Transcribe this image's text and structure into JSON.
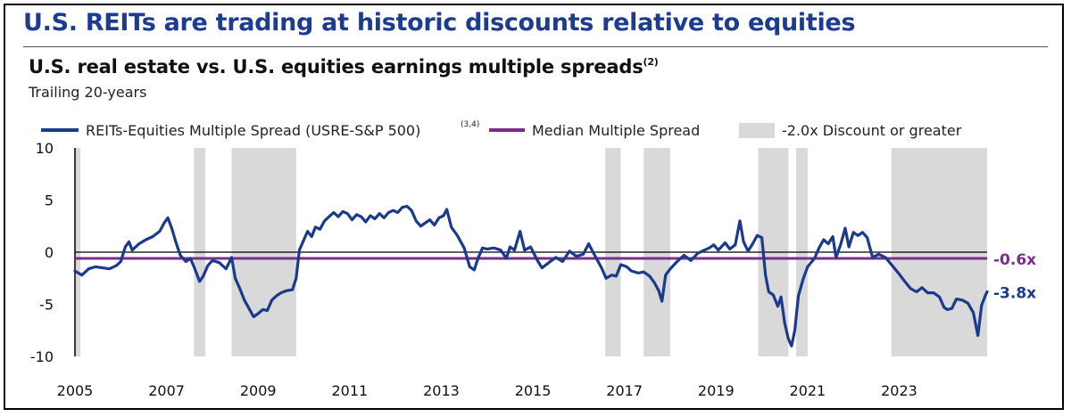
{
  "header": {
    "title": "U.S. REITs are trading at historic discounts relative to equities"
  },
  "chart_data": {
    "type": "line",
    "title": "U.S. real estate vs. U.S. equities earnings multiple spreads",
    "title_sup": "(2)",
    "subtitle": "Trailing 20-years",
    "xlabel": "",
    "ylabel": "",
    "xlim": [
      2005.0,
      2024.92
    ],
    "ylim": [
      -10,
      10
    ],
    "yticks": [
      "10",
      "5",
      "0",
      "-5",
      "-10"
    ],
    "xticks": [
      "2005",
      "2007",
      "2009",
      "2011",
      "2013",
      "2015",
      "2017",
      "2019",
      "2021",
      "2023"
    ],
    "legend_position": "top",
    "grid": false,
    "legend": {
      "series_label": "REITs-Equities Multiple Spread (USRE-S&P 500)",
      "series_sup": "(3,4)",
      "median_label": "Median Multiple Spread",
      "shade_label": "-2.0x Discount or greater"
    },
    "colors": {
      "series": "#1a3a8c",
      "median": "#7b2d8e",
      "shade": "#d9d9d9",
      "zero_line": "#000000"
    },
    "median_value": -0.6,
    "median_label": "-0.6x",
    "end_label": "-3.8x",
    "shaded_periods": [
      [
        2005.0,
        2005.12
      ],
      [
        2007.6,
        2007.85
      ],
      [
        2008.42,
        2009.83
      ],
      [
        2016.58,
        2016.92
      ],
      [
        2017.42,
        2018.0
      ],
      [
        2019.92,
        2020.58
      ],
      [
        2020.75,
        2021.0
      ],
      [
        2022.83,
        2024.92
      ]
    ],
    "series": [
      {
        "name": "REITs-Equities Multiple Spread (USRE-S&P 500)",
        "points": [
          [
            2005.0,
            -1.8
          ],
          [
            2005.15,
            -2.2
          ],
          [
            2005.3,
            -1.6
          ],
          [
            2005.45,
            -1.4
          ],
          [
            2005.6,
            -1.5
          ],
          [
            2005.75,
            -1.6
          ],
          [
            2005.9,
            -1.3
          ],
          [
            2006.0,
            -0.9
          ],
          [
            2006.1,
            0.5
          ],
          [
            2006.18,
            1.0
          ],
          [
            2006.25,
            0.2
          ],
          [
            2006.4,
            0.8
          ],
          [
            2006.55,
            1.2
          ],
          [
            2006.7,
            1.5
          ],
          [
            2006.85,
            2.0
          ],
          [
            2006.95,
            2.8
          ],
          [
            2007.03,
            3.3
          ],
          [
            2007.12,
            2.2
          ],
          [
            2007.2,
            1.0
          ],
          [
            2007.3,
            -0.3
          ],
          [
            2007.42,
            -0.9
          ],
          [
            2007.52,
            -0.6
          ],
          [
            2007.6,
            -1.4
          ],
          [
            2007.72,
            -2.8
          ],
          [
            2007.8,
            -2.3
          ],
          [
            2007.9,
            -1.3
          ],
          [
            2008.0,
            -0.8
          ],
          [
            2008.15,
            -1.0
          ],
          [
            2008.3,
            -1.6
          ],
          [
            2008.42,
            -0.5
          ],
          [
            2008.5,
            -2.5
          ],
          [
            2008.6,
            -3.5
          ],
          [
            2008.7,
            -4.6
          ],
          [
            2008.8,
            -5.4
          ],
          [
            2008.9,
            -6.2
          ],
          [
            2009.0,
            -5.9
          ],
          [
            2009.1,
            -5.5
          ],
          [
            2009.2,
            -5.6
          ],
          [
            2009.3,
            -4.6
          ],
          [
            2009.4,
            -4.2
          ],
          [
            2009.5,
            -3.9
          ],
          [
            2009.62,
            -3.7
          ],
          [
            2009.75,
            -3.6
          ],
          [
            2009.83,
            -2.5
          ],
          [
            2009.9,
            0.2
          ],
          [
            2010.0,
            1.2
          ],
          [
            2010.08,
            2.0
          ],
          [
            2010.17,
            1.5
          ],
          [
            2010.25,
            2.4
          ],
          [
            2010.35,
            2.2
          ],
          [
            2010.45,
            3.0
          ],
          [
            2010.55,
            3.4
          ],
          [
            2010.65,
            3.8
          ],
          [
            2010.75,
            3.4
          ],
          [
            2010.85,
            3.9
          ],
          [
            2010.95,
            3.7
          ],
          [
            2011.05,
            3.1
          ],
          [
            2011.15,
            3.6
          ],
          [
            2011.25,
            3.4
          ],
          [
            2011.35,
            2.9
          ],
          [
            2011.45,
            3.5
          ],
          [
            2011.55,
            3.2
          ],
          [
            2011.65,
            3.7
          ],
          [
            2011.75,
            3.3
          ],
          [
            2011.85,
            3.8
          ],
          [
            2011.95,
            4.0
          ],
          [
            2012.05,
            3.8
          ],
          [
            2012.15,
            4.3
          ],
          [
            2012.25,
            4.4
          ],
          [
            2012.35,
            4.0
          ],
          [
            2012.45,
            3.0
          ],
          [
            2012.55,
            2.5
          ],
          [
            2012.65,
            2.8
          ],
          [
            2012.75,
            3.1
          ],
          [
            2012.85,
            2.6
          ],
          [
            2012.95,
            3.3
          ],
          [
            2013.05,
            3.5
          ],
          [
            2013.12,
            4.1
          ],
          [
            2013.22,
            2.4
          ],
          [
            2013.35,
            1.6
          ],
          [
            2013.5,
            0.4
          ],
          [
            2013.62,
            -1.4
          ],
          [
            2013.72,
            -1.7
          ],
          [
            2013.8,
            -0.6
          ],
          [
            2013.9,
            0.4
          ],
          [
            2014.0,
            0.3
          ],
          [
            2014.15,
            0.4
          ],
          [
            2014.3,
            0.2
          ],
          [
            2014.42,
            -0.6
          ],
          [
            2014.5,
            0.5
          ],
          [
            2014.6,
            0.2
          ],
          [
            2014.72,
            2.0
          ],
          [
            2014.82,
            0.2
          ],
          [
            2014.95,
            0.5
          ],
          [
            2015.1,
            -0.8
          ],
          [
            2015.2,
            -1.5
          ],
          [
            2015.35,
            -1.0
          ],
          [
            2015.5,
            -0.5
          ],
          [
            2015.65,
            -0.9
          ],
          [
            2015.8,
            0.1
          ],
          [
            2015.95,
            -0.4
          ],
          [
            2016.1,
            -0.2
          ],
          [
            2016.22,
            0.8
          ],
          [
            2016.35,
            -0.3
          ],
          [
            2016.5,
            -1.5
          ],
          [
            2016.6,
            -2.5
          ],
          [
            2016.72,
            -2.2
          ],
          [
            2016.82,
            -2.3
          ],
          [
            2016.92,
            -1.2
          ],
          [
            2017.05,
            -1.4
          ],
          [
            2017.15,
            -1.8
          ],
          [
            2017.3,
            -2.0
          ],
          [
            2017.42,
            -1.9
          ],
          [
            2017.55,
            -2.3
          ],
          [
            2017.65,
            -2.9
          ],
          [
            2017.75,
            -3.7
          ],
          [
            2017.82,
            -4.7
          ],
          [
            2017.9,
            -2.2
          ],
          [
            2018.0,
            -1.6
          ],
          [
            2018.15,
            -0.9
          ],
          [
            2018.3,
            -0.3
          ],
          [
            2018.45,
            -0.8
          ],
          [
            2018.6,
            -0.1
          ],
          [
            2018.75,
            0.2
          ],
          [
            2018.85,
            0.4
          ],
          [
            2018.95,
            0.7
          ],
          [
            2019.05,
            0.2
          ],
          [
            2019.2,
            0.9
          ],
          [
            2019.3,
            0.3
          ],
          [
            2019.42,
            0.7
          ],
          [
            2019.52,
            3.0
          ],
          [
            2019.6,
            1.0
          ],
          [
            2019.7,
            0.1
          ],
          [
            2019.8,
            0.8
          ],
          [
            2019.9,
            1.6
          ],
          [
            2020.0,
            1.4
          ],
          [
            2020.08,
            -2.2
          ],
          [
            2020.15,
            -3.8
          ],
          [
            2020.25,
            -4.1
          ],
          [
            2020.35,
            -5.2
          ],
          [
            2020.42,
            -4.3
          ],
          [
            2020.5,
            -6.8
          ],
          [
            2020.58,
            -8.3
          ],
          [
            2020.65,
            -9.0
          ],
          [
            2020.72,
            -7.5
          ],
          [
            2020.8,
            -4.2
          ],
          [
            2020.9,
            -2.6
          ],
          [
            2021.0,
            -1.4
          ],
          [
            2021.15,
            -0.6
          ],
          [
            2021.25,
            0.4
          ],
          [
            2021.35,
            1.2
          ],
          [
            2021.45,
            0.8
          ],
          [
            2021.55,
            1.5
          ],
          [
            2021.62,
            -0.5
          ],
          [
            2021.72,
            0.7
          ],
          [
            2021.82,
            2.3
          ],
          [
            2021.9,
            0.5
          ],
          [
            2022.0,
            1.9
          ],
          [
            2022.1,
            1.6
          ],
          [
            2022.2,
            1.9
          ],
          [
            2022.3,
            1.4
          ],
          [
            2022.42,
            -0.5
          ],
          [
            2022.55,
            -0.2
          ],
          [
            2022.7,
            -0.5
          ],
          [
            2022.85,
            -1.3
          ],
          [
            2023.0,
            -2.1
          ],
          [
            2023.12,
            -2.8
          ],
          [
            2023.25,
            -3.5
          ],
          [
            2023.38,
            -3.8
          ],
          [
            2023.5,
            -3.4
          ],
          [
            2023.62,
            -3.9
          ],
          [
            2023.75,
            -3.9
          ],
          [
            2023.88,
            -4.3
          ],
          [
            2023.98,
            -5.3
          ],
          [
            2024.05,
            -5.5
          ],
          [
            2024.15,
            -5.4
          ],
          [
            2024.25,
            -4.5
          ],
          [
            2024.38,
            -4.6
          ],
          [
            2024.5,
            -4.9
          ],
          [
            2024.62,
            -5.8
          ],
          [
            2024.72,
            -8.0
          ],
          [
            2024.8,
            -5.1
          ],
          [
            2024.88,
            -4.2
          ],
          [
            2024.92,
            -3.8
          ]
        ]
      }
    ]
  }
}
